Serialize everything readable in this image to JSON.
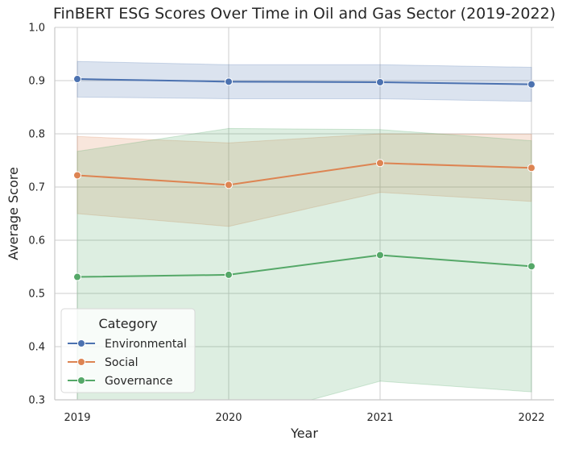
{
  "chart_data": {
    "type": "line",
    "title": "FinBERT ESG Scores Over Time in Oil and Gas Sector (2019-2022)",
    "xlabel": "Year",
    "ylabel": "Average Score",
    "x": [
      2019,
      2020,
      2021,
      2022
    ],
    "x_tick_labels": [
      "2019",
      "2020",
      "2021",
      "2022"
    ],
    "ylim": [
      0.3,
      1.0
    ],
    "y_ticks": [
      0.3,
      0.4,
      0.5,
      0.6,
      0.7,
      0.8,
      0.9,
      1.0
    ],
    "y_tick_labels": [
      "0.3",
      "0.4",
      "0.5",
      "0.6",
      "0.7",
      "0.8",
      "0.9",
      "1.0"
    ],
    "grid": true,
    "legend": {
      "title": "Category",
      "placement": "lower-left"
    },
    "series": [
      {
        "name": "Environmental",
        "color": "#4c72b0",
        "values": [
          0.903,
          0.898,
          0.897,
          0.893
        ],
        "ci_lower": [
          0.869,
          0.866,
          0.866,
          0.861
        ],
        "ci_upper": [
          0.936,
          0.93,
          0.93,
          0.925
        ]
      },
      {
        "name": "Social",
        "color": "#dd8452",
        "values": [
          0.722,
          0.704,
          0.745,
          0.736
        ],
        "ci_lower": [
          0.65,
          0.626,
          0.69,
          0.673
        ],
        "ci_upper": [
          0.795,
          0.783,
          0.8,
          0.799
        ]
      },
      {
        "name": "Governance",
        "color": "#55a868",
        "values": [
          0.531,
          0.535,
          0.572,
          0.551
        ],
        "ci_lower": [
          0.25,
          0.258,
          0.335,
          0.315
        ],
        "ci_upper": [
          0.767,
          0.81,
          0.808,
          0.787
        ]
      }
    ]
  }
}
